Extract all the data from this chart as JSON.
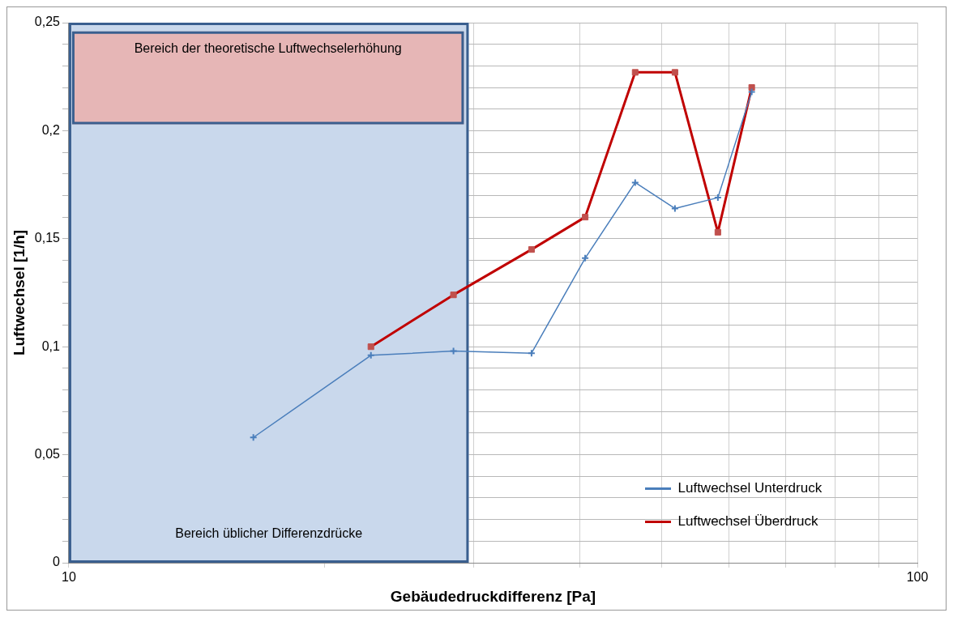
{
  "chart_data": {
    "type": "line",
    "xlabel": "Gebäudedruckdifferenz [Pa]",
    "ylabel": "Luftwechsel [1/h]",
    "log": "x",
    "xlim": [
      10,
      100
    ],
    "xticks": [
      10,
      {
        "value": 20,
        "label": null
      },
      {
        "value": 30,
        "label": null
      },
      {
        "value": 40,
        "label": null
      },
      {
        "value": 50,
        "label": null
      },
      {
        "value": 60,
        "label": null
      },
      {
        "value": 70,
        "label": null
      },
      {
        "value": 80,
        "label": null
      },
      {
        "value": 90,
        "label": null
      },
      100
    ],
    "ylim": [
      0,
      0.25
    ],
    "yticks": [
      0,
      {
        "value": 0.01,
        "label": null
      },
      {
        "value": 0.02,
        "label": null
      },
      {
        "value": 0.03,
        "label": null
      },
      {
        "value": 0.04,
        "label": null
      },
      {
        "value": 0.05,
        "label": "0,05"
      },
      {
        "value": 0.06,
        "label": null
      },
      {
        "value": 0.07,
        "label": null
      },
      {
        "value": 0.08,
        "label": null
      },
      {
        "value": 0.09,
        "label": null
      },
      {
        "value": 0.1,
        "label": "0,1"
      },
      {
        "value": 0.11,
        "label": null
      },
      {
        "value": 0.12,
        "label": null
      },
      {
        "value": 0.13,
        "label": null
      },
      {
        "value": 0.14,
        "label": null
      },
      {
        "value": 0.15,
        "label": "0,15"
      },
      {
        "value": 0.16,
        "label": null
      },
      {
        "value": 0.17,
        "label": null
      },
      {
        "value": 0.18,
        "label": null
      },
      {
        "value": 0.19,
        "label": null
      },
      {
        "value": 0.2,
        "label": "0,2"
      },
      {
        "value": 0.21,
        "label": null
      },
      {
        "value": 0.22,
        "label": null
      },
      {
        "value": 0.23,
        "label": null
      },
      {
        "value": 0.24,
        "label": null
      },
      {
        "value": 0.25,
        "label": "0,25"
      }
    ],
    "grid": true,
    "legend": "bottom right",
    "line_style": "solid",
    "series": [
      {
        "name": "Luftwechsel Unterdruck",
        "color": "#4a7ebb",
        "marker": "cross",
        "x": [
          16.5,
          22.7,
          28.4,
          35.1,
          40.6,
          46.5,
          51.8,
          58.2,
          63.8
        ],
        "values": [
          0.058,
          0.096,
          0.098,
          0.097,
          0.141,
          0.176,
          0.164,
          0.169,
          0.218
        ]
      },
      {
        "name": "Luftwechsel Überdruck",
        "color": "#c00000",
        "marker": "square",
        "x": [
          22.7,
          28.4,
          35.1,
          40.6,
          46.5,
          51.8,
          58.2,
          63.8
        ],
        "values": [
          0.1,
          0.124,
          0.145,
          0.16,
          0.227,
          0.227,
          0.153,
          0.22
        ]
      }
    ],
    "bands": [
      {
        "axis": "x",
        "from": 10,
        "to": 29.6,
        "label": "Bereich üblicher Differenzdrücke",
        "color": "#c9d8ec"
      },
      {
        "axis": "y",
        "from": 0.203,
        "to": 0.246,
        "label": "Bereich der theoretische Luftwechselerhöhung",
        "color": "#e6b6b6"
      }
    ]
  }
}
